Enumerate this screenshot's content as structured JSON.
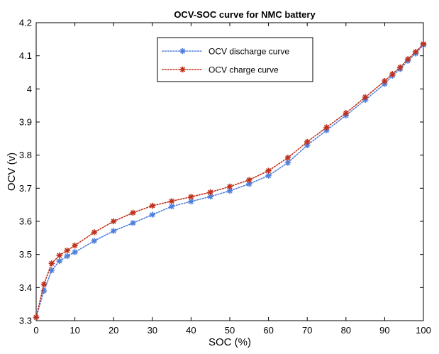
{
  "chart_data": {
    "type": "line",
    "title": "OCV-SOC curve for NMC battery",
    "xlabel": "SOC (%)",
    "ylabel": "OCV (v)",
    "xlim": [
      0,
      100
    ],
    "ylim": [
      3.3,
      4.2
    ],
    "xticks": [
      0,
      10,
      20,
      30,
      40,
      50,
      60,
      70,
      80,
      90,
      100
    ],
    "xtick_labels": [
      "0",
      "10",
      "20",
      "30",
      "40",
      "50",
      "60",
      "70",
      "80",
      "90",
      "100"
    ],
    "yticks": [
      3.3,
      3.4,
      3.5,
      3.6,
      3.7,
      3.8,
      3.9,
      4.0,
      4.1,
      4.2
    ],
    "ytick_labels": [
      "3.3",
      "3.4",
      "3.5",
      "3.6",
      "3.7",
      "3.8",
      "3.9",
      "4",
      "4.1",
      "4.2"
    ],
    "grid": false,
    "legend_position": "top-right",
    "series": [
      {
        "name": "OCV discharge curve",
        "color": "#4f7fdc",
        "marker": "asterisk",
        "line_style": "dotted",
        "x": [
          0,
          2,
          4,
          6,
          8,
          10,
          15,
          20,
          25,
          30,
          35,
          40,
          45,
          50,
          55,
          60,
          65,
          70,
          75,
          80,
          85,
          90,
          92,
          94,
          96,
          98,
          100
        ],
        "y": [
          3.31,
          3.39,
          3.452,
          3.48,
          3.495,
          3.507,
          3.541,
          3.571,
          3.595,
          3.62,
          3.645,
          3.66,
          3.675,
          3.692,
          3.713,
          3.738,
          3.777,
          3.83,
          3.875,
          3.92,
          3.967,
          4.015,
          4.04,
          4.06,
          4.085,
          4.107,
          4.133
        ]
      },
      {
        "name": "OCV charge curve",
        "color": "#c0311c",
        "marker": "asterisk",
        "line_style": "dotted",
        "x": [
          0,
          2,
          4,
          6,
          8,
          10,
          15,
          20,
          25,
          30,
          35,
          40,
          45,
          50,
          55,
          60,
          65,
          70,
          75,
          80,
          85,
          90,
          92,
          94,
          96,
          98,
          100
        ],
        "y": [
          3.31,
          3.41,
          3.473,
          3.497,
          3.512,
          3.527,
          3.567,
          3.6,
          3.626,
          3.647,
          3.661,
          3.674,
          3.688,
          3.705,
          3.725,
          3.753,
          3.792,
          3.84,
          3.884,
          3.927,
          3.975,
          4.024,
          4.045,
          4.065,
          4.09,
          4.112,
          4.136
        ]
      }
    ]
  }
}
